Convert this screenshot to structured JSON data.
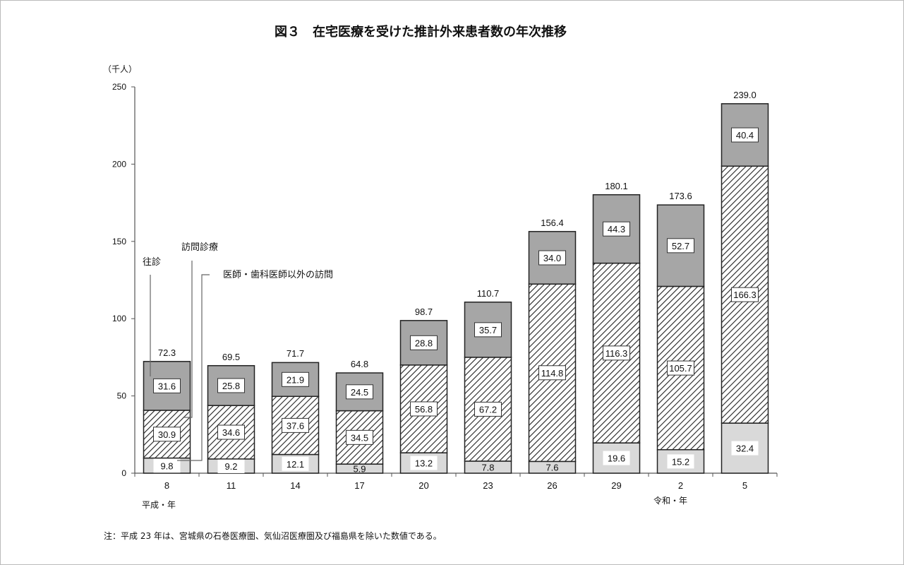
{
  "chart_data": {
    "type": "bar",
    "stacked": true,
    "title": "図３　在宅医療を受けた推計外来患者数の年次推移",
    "ylabel": "（千人）",
    "ylim": [
      0,
      250
    ],
    "yticks": [
      0,
      50,
      100,
      150,
      200,
      250
    ],
    "categories": [
      "8",
      "11",
      "14",
      "17",
      "20",
      "23",
      "26",
      "29",
      "2",
      "5"
    ],
    "era_labels": {
      "heisei": "平成・年",
      "reiwa": "令和・年"
    },
    "series": [
      {
        "name": "往診",
        "color": "#d9d9d9",
        "values": [
          9.8,
          9.2,
          12.1,
          5.9,
          13.2,
          7.8,
          7.6,
          19.6,
          15.2,
          32.4
        ]
      },
      {
        "name": "訪問診療",
        "color": "hatched",
        "values": [
          30.9,
          34.6,
          37.6,
          34.5,
          56.8,
          67.2,
          114.8,
          116.3,
          105.7,
          166.3
        ]
      },
      {
        "name": "医師・歯科医師以外の訪問",
        "color": "#a6a6a6",
        "values": [
          31.6,
          25.8,
          21.9,
          24.5,
          28.8,
          35.7,
          34.0,
          44.3,
          52.7,
          40.4
        ]
      }
    ],
    "totals": [
      72.3,
      69.5,
      71.7,
      64.8,
      98.7,
      110.7,
      156.4,
      180.1,
      173.6,
      239.0
    ],
    "note": "注：平成 23 年は、宮城県の石巻医療圏、気仙沼医療圏及び福島県を除いた数値である。"
  }
}
